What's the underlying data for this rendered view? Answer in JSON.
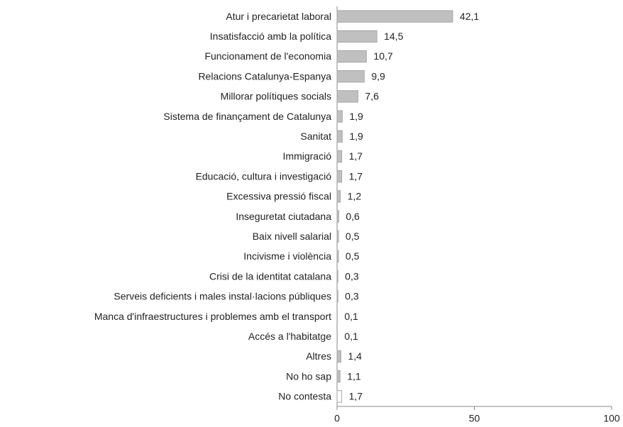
{
  "chart_data": {
    "type": "barh",
    "categories": [
      "Atur i precarietat laboral",
      "Insatisfacció amb la política",
      "Funcionament de l'economia",
      "Relacions Catalunya-Espanya",
      "Millorar polítiques socials",
      "Sistema de finançament de Catalunya",
      "Sanitat",
      "Immigració",
      "Educació, cultura i investigació",
      "Excessiva pressió fiscal",
      "Inseguretat ciutadana",
      "Baix nivell salarial",
      "Incivisme i violència",
      "Crisi de la identitat catalana",
      "Serveis deficients i males instal·lacions públiques",
      "Manca d'infraestructures i problemes amb el transport",
      "Accés a l'habitatge",
      "Altres",
      "No ho sap",
      "No contesta"
    ],
    "values": [
      42.1,
      14.5,
      10.7,
      9.9,
      7.6,
      1.9,
      1.9,
      1.7,
      1.7,
      1.2,
      0.6,
      0.5,
      0.5,
      0.3,
      0.3,
      0.1,
      0.1,
      1.4,
      1.1,
      1.7
    ],
    "value_labels": [
      "42,1",
      "14,5",
      "10,7",
      "9,9",
      "7,6",
      "1,9",
      "1,9",
      "1,7",
      "1,7",
      "1,2",
      "0,6",
      "0,5",
      "0,5",
      "0,3",
      "0,3",
      "0,1",
      "0,1",
      "1,4",
      "1,1",
      "1,7"
    ],
    "colors": [
      "#c0c0c0",
      "#c0c0c0",
      "#c0c0c0",
      "#c0c0c0",
      "#c0c0c0",
      "#c0c0c0",
      "#c0c0c0",
      "#c0c0c0",
      "#c0c0c0",
      "#c0c0c0",
      "#c0c0c0",
      "#c0c0c0",
      "#c0c0c0",
      "#c0c0c0",
      "#c0c0c0",
      "#c0c0c0",
      "#c0c0c0",
      "#c0c0c0",
      "#c0c0c0",
      "#ffffff"
    ],
    "edgecolor": "#a6a6a6",
    "xlim": [
      0,
      100
    ],
    "xticks": [
      0,
      50,
      100
    ],
    "grid": false
  }
}
